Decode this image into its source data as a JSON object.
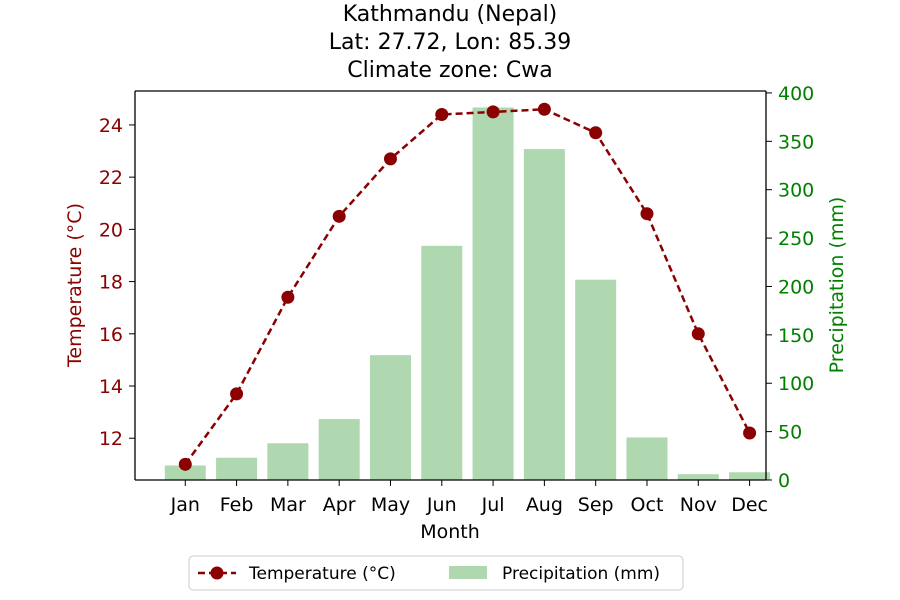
{
  "chart_data": {
    "type": "bar+line",
    "title_lines": [
      "Kathmandu (Nepal)",
      "Lat: 27.72, Lon: 85.39",
      "Climate zone: Cwa"
    ],
    "categories": [
      "Jan",
      "Feb",
      "Mar",
      "Apr",
      "May",
      "Jun",
      "Jul",
      "Aug",
      "Sep",
      "Oct",
      "Nov",
      "Dec"
    ],
    "xlabel": "Month",
    "temperature": {
      "name": "Temperature (°C)",
      "axis_label": "Temperature (°C)",
      "values": [
        11.0,
        13.7,
        17.4,
        20.5,
        22.7,
        24.4,
        24.5,
        24.6,
        23.7,
        20.6,
        16.0,
        12.2
      ],
      "ylim": [
        10.4,
        25.3
      ],
      "ticks": [
        12,
        14,
        16,
        18,
        20,
        22,
        24
      ],
      "color": "#8b0000",
      "line_style": "dashed",
      "marker": "circle"
    },
    "precipitation": {
      "name": "Precipitation (mm)",
      "axis_label": "Precipitation (mm)",
      "values": [
        15,
        23,
        38,
        63,
        129,
        242,
        385,
        342,
        207,
        44,
        6,
        8
      ],
      "ylim": [
        0,
        402
      ],
      "ticks": [
        0,
        50,
        100,
        150,
        200,
        250,
        300,
        350,
        400
      ],
      "color": "#b0d8b0",
      "axis_color": "#008000"
    },
    "legend": {
      "placement": "bottom-center",
      "entries": [
        "Temperature (°C)",
        "Precipitation (mm)"
      ]
    }
  }
}
